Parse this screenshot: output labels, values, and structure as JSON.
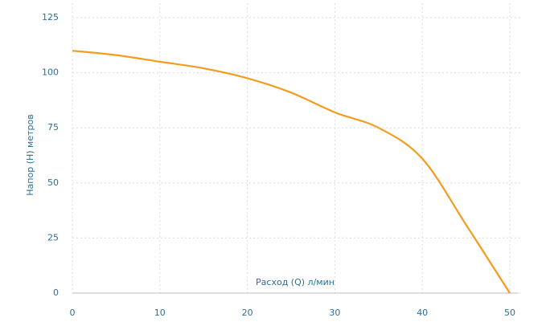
{
  "chart_data": {
    "type": "line",
    "x_label": "Расход (Q) л/мин",
    "y_label": "Напор (H) метров",
    "x": [
      0,
      5,
      10,
      15,
      20,
      25,
      30,
      35,
      40,
      45,
      50
    ],
    "series": [
      {
        "color": "#f39c1f",
        "values": [
          110,
          108,
          105,
          102,
          97.5,
          91,
          82,
          75,
          61,
          31,
          0
        ]
      }
    ],
    "xlim": [
      0,
      50
    ],
    "xticks": [
      0,
      10,
      20,
      30,
      40,
      50
    ],
    "ylim": [
      0,
      125
    ],
    "yticks": [
      0,
      25,
      50,
      75,
      100,
      125
    ],
    "grid": true
  }
}
